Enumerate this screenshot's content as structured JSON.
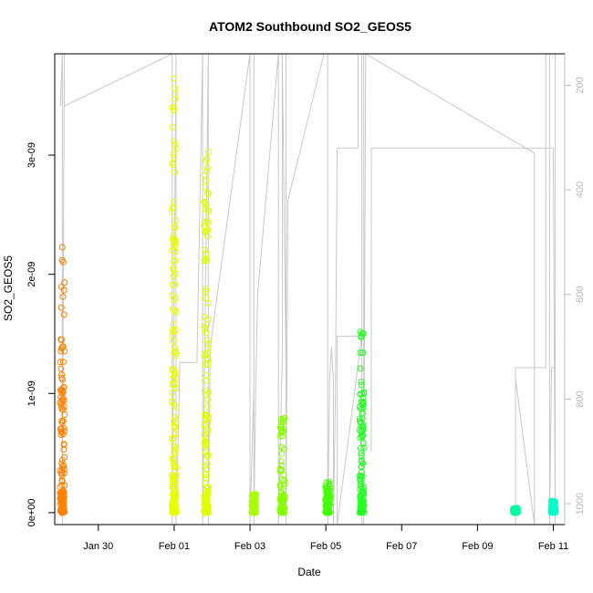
{
  "chart_data": {
    "type": "scatter",
    "title": "ATOM2 Southbound SO2_GEOS5",
    "xlabel": "Date",
    "ylabel": "SO2_GEOS5",
    "x_tick_labels": [
      "Jan 30",
      "Feb 01",
      "Feb 03",
      "Feb 05",
      "Feb 07",
      "Feb 09",
      "Feb 11"
    ],
    "y_tick_labels": [
      "0e+00",
      "1e-09",
      "2e-09",
      "3e-09"
    ],
    "y_ticks": [
      0,
      1e-09,
      2e-09,
      3e-09
    ],
    "right_axis_tick_labels": [
      "200",
      "400",
      "600",
      "800",
      "1000"
    ],
    "right_axis_ticks": [
      200,
      400,
      600,
      800,
      1000
    ],
    "right_axis_inverted": true,
    "right_axis_color": "#c0c0c0",
    "xlim_days_from_jan30": [
      -1.15,
      12.3
    ],
    "ylim": [
      -1e-10,
      3.85e-09
    ],
    "right_ylim": [
      1040,
      140
    ],
    "marker": "open-circle",
    "clusters": [
      {
        "date": "Jan 29",
        "day": -0.95,
        "color": "#ff8000",
        "y_min": 0,
        "y_max": 2.25e-09
      },
      {
        "date": "Feb 01",
        "day": 2.0,
        "color": "#e8ff00",
        "y_min": 0,
        "y_max": 3.7e-09
      },
      {
        "date": "Feb 01",
        "day": 2.85,
        "color": "#e0ff00",
        "y_min": 0,
        "y_max": 3.1e-09
      },
      {
        "date": "Feb 03",
        "day": 4.1,
        "color": "#a8ff00",
        "y_min": 0,
        "y_max": 1.6e-10
      },
      {
        "date": "Feb 03",
        "day": 4.85,
        "color": "#88ff00",
        "y_min": 0,
        "y_max": 8.5e-10
      },
      {
        "date": "Feb 05",
        "day": 6.05,
        "color": "#40ff00",
        "y_min": 0,
        "y_max": 3e-10
      },
      {
        "date": "Feb 05",
        "day": 6.95,
        "color": "#20ff20",
        "y_min": 0,
        "y_max": 1.52e-09
      },
      {
        "date": "Feb 09",
        "day": 11.0,
        "color": "#00ffa0",
        "y_min": 0,
        "y_max": 4e-11
      },
      {
        "date": "Feb 11",
        "day": 12.0,
        "color": "#00ffc8",
        "y_min": 0,
        "y_max": 1e-10
      }
    ],
    "pressure_track": {
      "color": "#c8c8c8",
      "points": [
        [
          -1.0,
          240
        ],
        [
          -0.95,
          140
        ],
        [
          -0.95,
          1040
        ],
        [
          -0.9,
          140
        ],
        [
          -0.9,
          240
        ],
        [
          1.95,
          140
        ],
        [
          1.95,
          1040
        ],
        [
          2.05,
          140
        ],
        [
          2.05,
          1040
        ],
        [
          2.15,
          730
        ],
        [
          2.6,
          730
        ],
        [
          2.75,
          140
        ],
        [
          2.75,
          1040
        ],
        [
          2.9,
          140
        ],
        [
          2.9,
          1040
        ],
        [
          2.95,
          700
        ],
        [
          4.0,
          140
        ],
        [
          4.0,
          1040
        ],
        [
          4.1,
          780
        ],
        [
          4.1,
          140
        ],
        [
          4.1,
          1040
        ],
        [
          4.15,
          780
        ],
        [
          4.2,
          600
        ],
        [
          4.75,
          140
        ],
        [
          4.75,
          1040
        ],
        [
          4.85,
          720
        ],
        [
          4.85,
          140
        ],
        [
          4.95,
          740
        ],
        [
          4.95,
          140
        ],
        [
          4.95,
          1040
        ],
        [
          5.0,
          420
        ],
        [
          5.95,
          140
        ],
        [
          6.05,
          140
        ],
        [
          6.05,
          1040
        ],
        [
          6.1,
          760
        ],
        [
          6.15,
          700
        ],
        [
          6.2,
          770
        ],
        [
          6.2,
          1040
        ],
        [
          6.25,
          800
        ],
        [
          6.3,
          320
        ],
        [
          6.85,
          320
        ],
        [
          6.85,
          140
        ],
        [
          6.95,
          140
        ],
        [
          6.95,
          1040
        ],
        [
          6.95,
          680
        ],
        [
          6.3,
          680
        ],
        [
          6.3,
          1040
        ],
        [
          6.95,
          680
        ],
        [
          6.95,
          140
        ],
        [
          7.0,
          140
        ],
        [
          7.0,
          1040
        ],
        [
          7.05,
          140
        ],
        [
          11.5,
          330
        ],
        [
          11.5,
          1040
        ],
        [
          11.0,
          760
        ],
        [
          11.0,
          1040
        ],
        [
          11.0,
          740
        ],
        [
          11.8,
          740
        ],
        [
          11.8,
          140
        ],
        [
          11.9,
          140
        ],
        [
          11.9,
          1040
        ],
        [
          11.95,
          740
        ],
        [
          12.05,
          740
        ],
        [
          12.05,
          140
        ],
        [
          12.05,
          1040
        ],
        [
          12.0,
          320
        ],
        [
          7.2,
          320
        ],
        [
          7.2,
          900
        ]
      ]
    }
  }
}
